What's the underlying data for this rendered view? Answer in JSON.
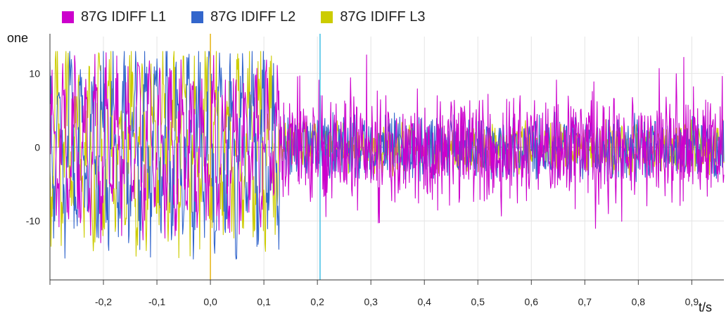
{
  "chart_data": {
    "type": "line",
    "ylabel": "one",
    "xlabel": "t/s",
    "xlim": [
      -0.3,
      0.96
    ],
    "ylim": [
      -18,
      15
    ],
    "grid": true,
    "legend_placement": "top",
    "x_ticks": [
      -0.2,
      -0.1,
      0.0,
      0.1,
      0.2,
      0.3,
      0.4,
      0.5,
      0.6,
      0.7,
      0.8,
      0.9
    ],
    "x_tick_labels": [
      "-0,2",
      "-0,1",
      "0,0",
      "0,1",
      "0,2",
      "0,3",
      "0,4",
      "0,5",
      "0,6",
      "0,7",
      "0,8",
      "0,9"
    ],
    "y_ticks": [
      10,
      0,
      -10
    ],
    "y_tick_labels": [
      "10",
      "0",
      "-10"
    ],
    "cursors": [
      {
        "x": 0.0,
        "color": "#e8b820"
      },
      {
        "x": 0.205,
        "color": "#4ec3e6"
      }
    ],
    "sample_interval_s": 0.001,
    "fault_transition_s": 0.13,
    "series": [
      {
        "name": "87G IDIFF L1",
        "color": "#cc00cc",
        "pre_amplitude": 10,
        "post_amplitude": 8
      },
      {
        "name": "87G IDIFF L2",
        "color": "#3366cc",
        "pre_amplitude": 12,
        "post_amplitude": 5
      },
      {
        "name": "87G IDIFF L3",
        "color": "#cccc00",
        "pre_amplitude": 12,
        "post_amplitude": 4
      }
    ]
  }
}
